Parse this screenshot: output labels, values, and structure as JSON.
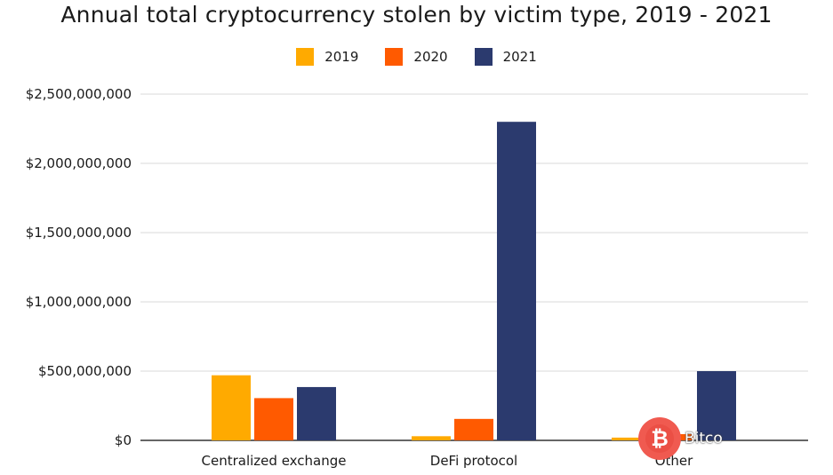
{
  "chart_data": {
    "type": "bar",
    "title": "Annual total cryptocurrency stolen by victim type, 2019 - 2021",
    "categories": [
      "Centralized exchange",
      "DeFi protocol",
      "Other"
    ],
    "series": [
      {
        "name": "2019",
        "color": "#FFAA00",
        "values": [
          470000000,
          30000000,
          20000000
        ]
      },
      {
        "name": "2020",
        "color": "#FF5A00",
        "values": [
          305000000,
          155000000,
          45000000
        ]
      },
      {
        "name": "2021",
        "color": "#2B3A6E",
        "values": [
          385000000,
          2300000000,
          500000000
        ]
      }
    ],
    "yticks": [
      "$0",
      "$500,000,000",
      "$1,000,000,000",
      "$1,500,000,000",
      "$2,000,000,000",
      "$2,500,000,000"
    ],
    "ylim": [
      0,
      2500000000
    ],
    "grid": true,
    "legend_position": "top-center"
  },
  "watermark": {
    "text": "Bitco",
    "icon": "bitcoin-icon"
  }
}
